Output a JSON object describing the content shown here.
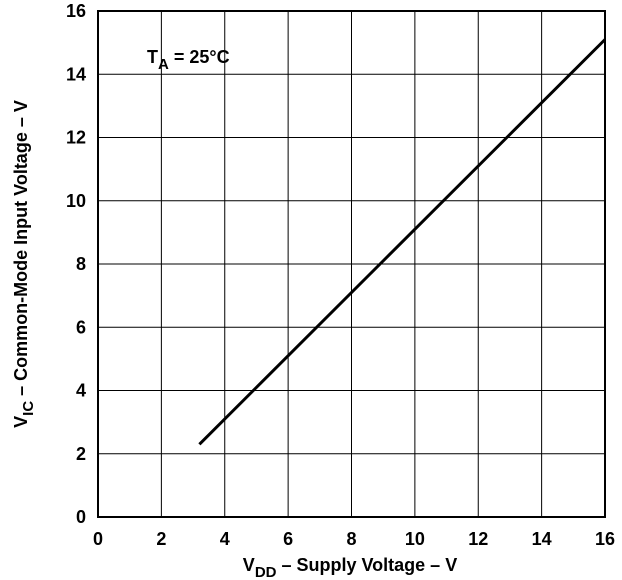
{
  "chart_data": {
    "type": "line",
    "x_axis": {
      "label_main": "V",
      "label_sub": "DD",
      "label_rest": " – Supply Voltage – V",
      "range": [
        0,
        16
      ],
      "ticks": [
        0,
        2,
        4,
        6,
        8,
        10,
        12,
        14,
        16
      ],
      "tick_labels": [
        "0",
        "2",
        "4",
        "6",
        "8",
        "10",
        "12",
        "14",
        "16"
      ]
    },
    "y_axis": {
      "label_main": "V",
      "label_sub": "IC",
      "label_rest": " – Common-Mode Input Voltage – V",
      "range": [
        0,
        16
      ],
      "ticks": [
        0,
        2,
        4,
        6,
        8,
        10,
        12,
        14,
        16
      ],
      "tick_labels": [
        "0",
        "2",
        "4",
        "6",
        "8",
        "10",
        "12",
        "14",
        "16"
      ]
    },
    "grid": true,
    "annotation": {
      "main": "T",
      "sub": "A",
      "rest": " = 25°C",
      "position": "top-left"
    },
    "series": [
      {
        "x": [
          3.2,
          16
        ],
        "y": [
          2.3,
          15.1
        ],
        "color": "#000000"
      }
    ]
  }
}
